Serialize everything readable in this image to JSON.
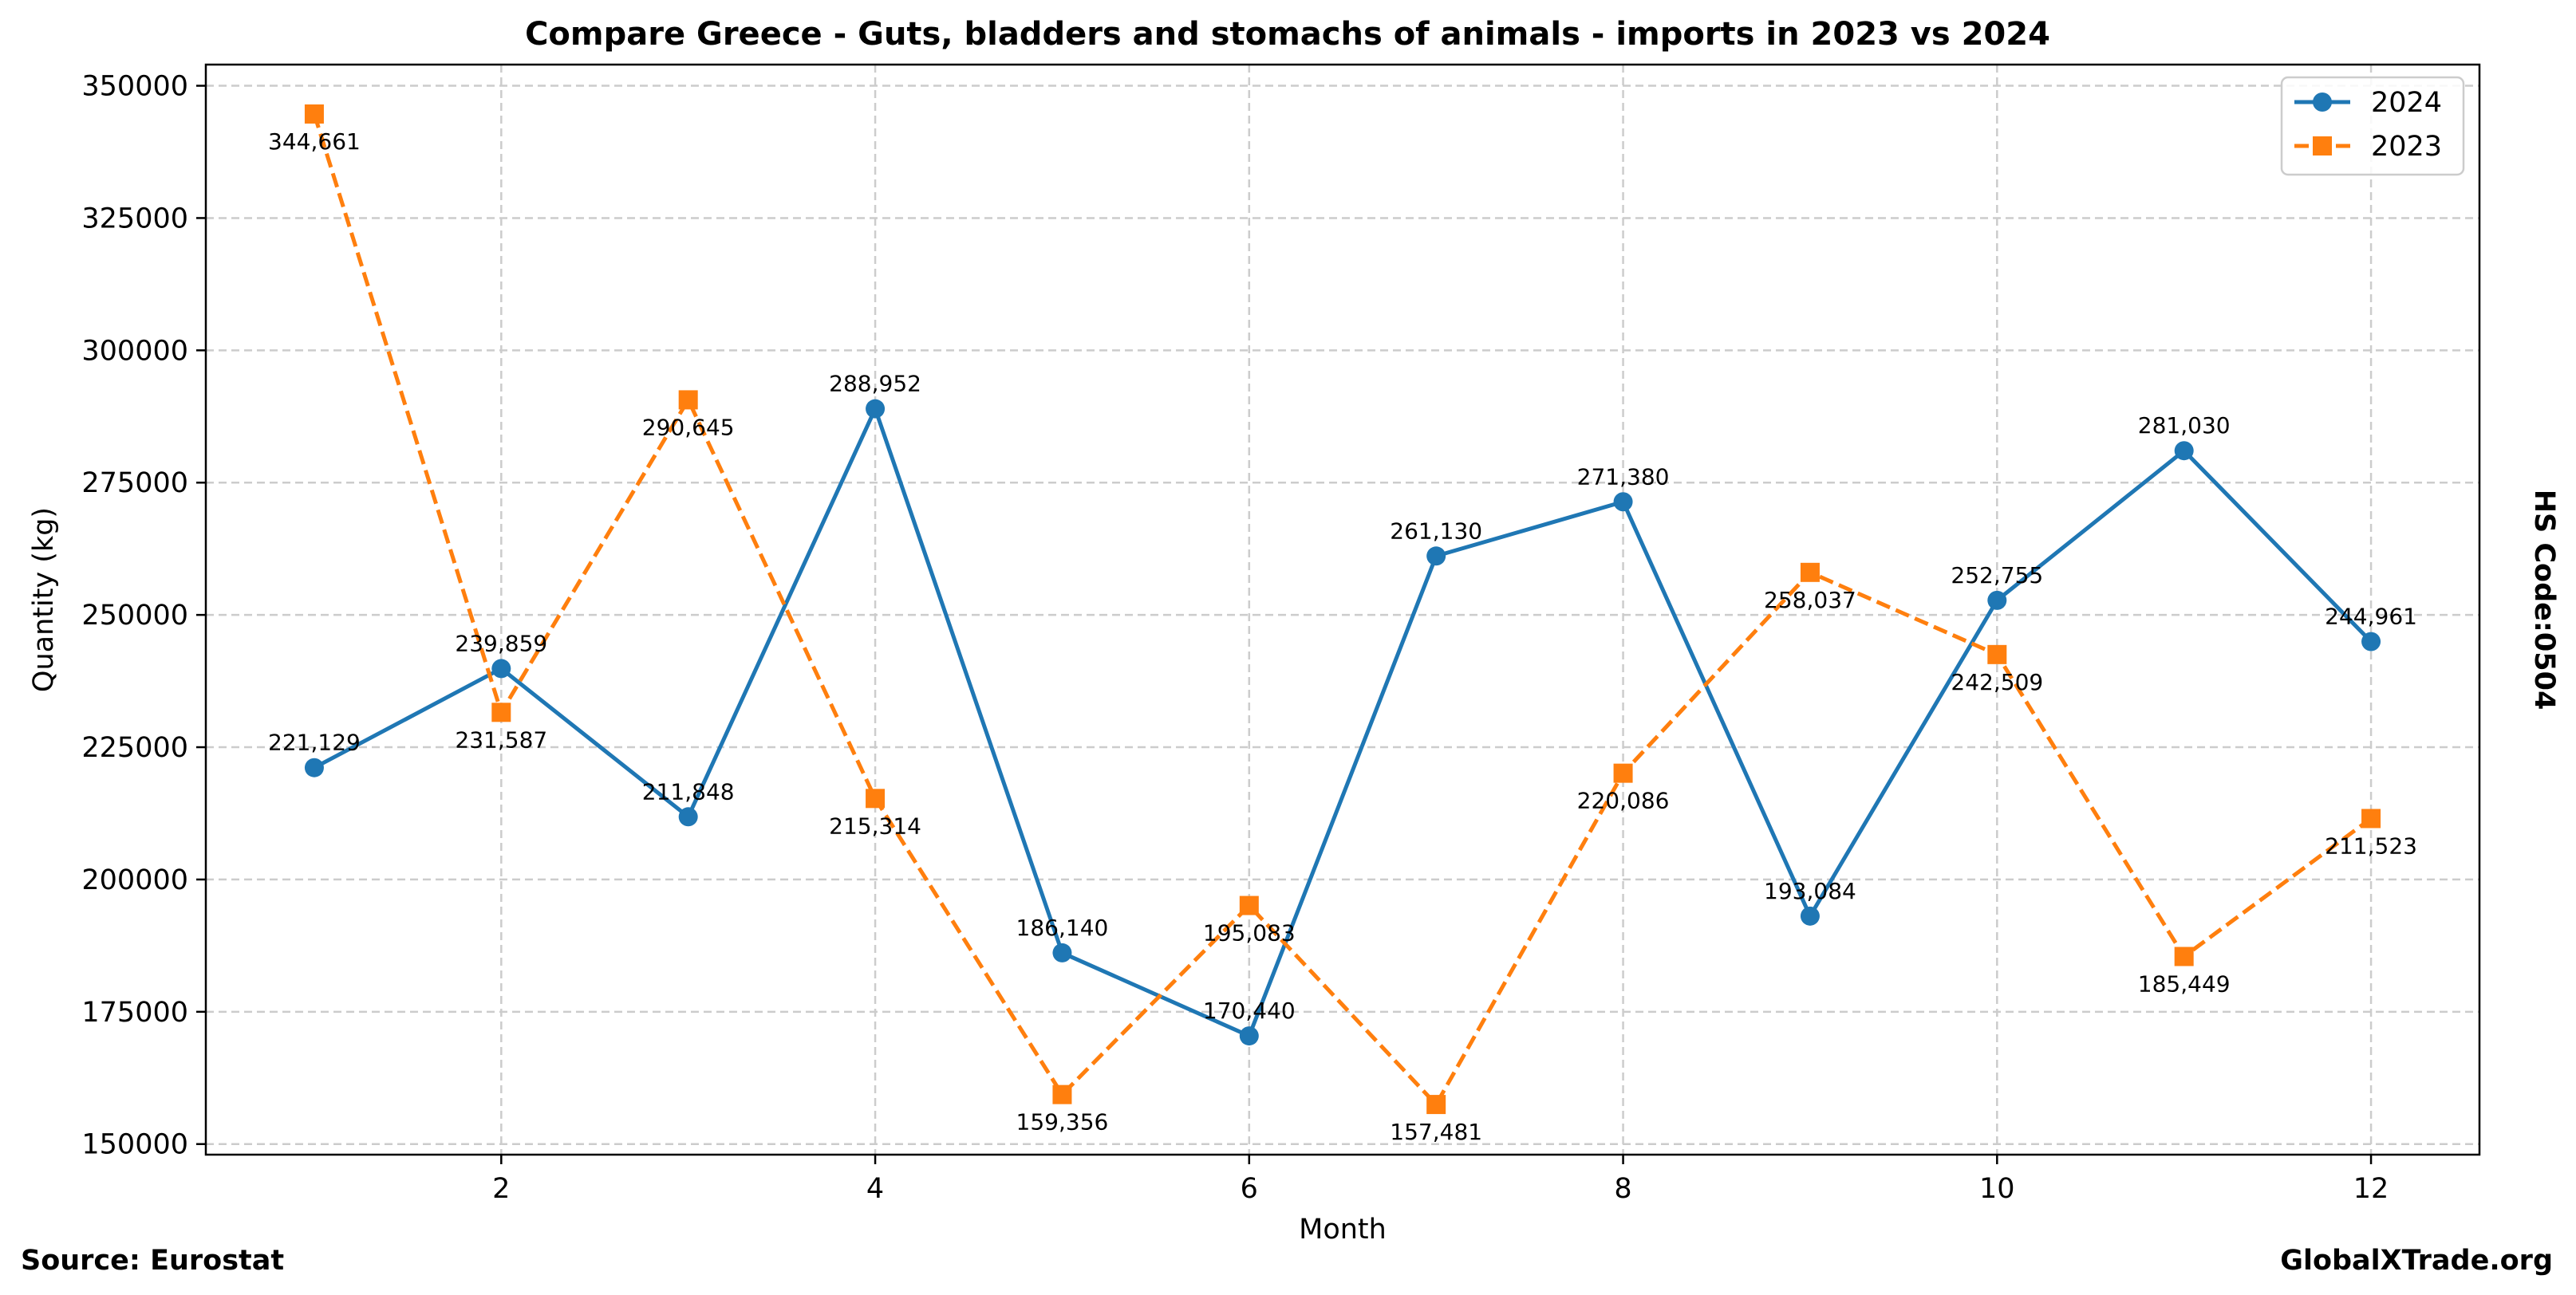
{
  "chart_data": {
    "type": "line",
    "title": "Compare Greece - Guts, bladders and stomachs of animals - imports in 2023 vs 2024",
    "xlabel": "Month",
    "ylabel": "Quantity (kg)",
    "side_label": "HS Code:0504",
    "source": "Source: Eurostat",
    "brand": "GlobalXTrade.org",
    "x": [
      1,
      2,
      3,
      4,
      5,
      6,
      7,
      8,
      9,
      10,
      11,
      12
    ],
    "xlim": [
      0.42,
      12.58
    ],
    "ylim": [
      148000,
      354000
    ],
    "x_ticks": [
      2,
      4,
      6,
      8,
      10,
      12
    ],
    "y_ticks": [
      150000,
      175000,
      200000,
      225000,
      250000,
      275000,
      300000,
      325000,
      350000
    ],
    "grid": true,
    "legend_position": "top-right",
    "series": [
      {
        "name": "2024",
        "color": "#1f77b4",
        "line_style": "solid",
        "marker": "circle",
        "label_position": "above",
        "values": [
          221129,
          239859,
          211848,
          288952,
          186140,
          170440,
          261130,
          271380,
          193084,
          252755,
          281030,
          244961
        ],
        "labels": [
          "221,129",
          "239,859",
          "211,848",
          "288,952",
          "186,140",
          "170,440",
          "261,130",
          "271,380",
          "193,084",
          "252,755",
          "281,030",
          "244,961"
        ]
      },
      {
        "name": "2023",
        "color": "#ff7f0e",
        "line_style": "dashed",
        "marker": "square",
        "label_position": "below",
        "values": [
          344661,
          231587,
          290645,
          215314,
          159356,
          195083,
          157481,
          220086,
          258037,
          242509,
          185449,
          211523
        ],
        "labels": [
          "344,661",
          "231,587",
          "290,645",
          "215,314",
          "159,356",
          "195,083",
          "157,481",
          "220,086",
          "258,037",
          "242,509",
          "185,449",
          "211,523"
        ]
      }
    ]
  }
}
